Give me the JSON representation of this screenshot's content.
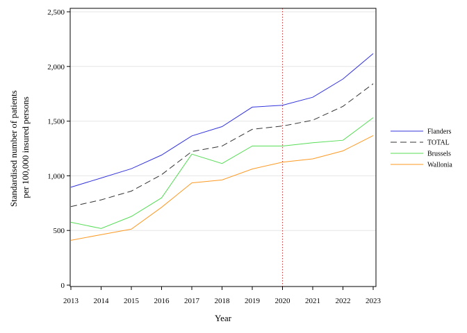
{
  "chart_data": {
    "type": "line",
    "x": [
      2013,
      2014,
      2015,
      2016,
      2017,
      2018,
      2019,
      2020,
      2021,
      2022,
      2023
    ],
    "x_tick_labels": [
      "2013",
      "2014",
      "2015",
      "2016",
      "2017",
      "2018",
      "2019",
      "2020",
      "2021",
      "2022",
      "2023"
    ],
    "series": [
      {
        "name": "Flanders",
        "color": "#3333dd",
        "dash": "solid",
        "values": [
          895,
          980,
          1065,
          1190,
          1365,
          1450,
          1628,
          1645,
          1718,
          1885,
          2118
        ]
      },
      {
        "name": "TOTAL",
        "color": "#333333",
        "dash": "dashed",
        "values": [
          718,
          780,
          860,
          1010,
          1222,
          1272,
          1425,
          1455,
          1508,
          1635,
          1842
        ]
      },
      {
        "name": "Brussels",
        "color": "#55dd55",
        "dash": "solid",
        "values": [
          575,
          518,
          628,
          798,
          1198,
          1112,
          1272,
          1272,
          1302,
          1325,
          1532
        ]
      },
      {
        "name": "Wallonia",
        "color": "#ff9922",
        "dash": "solid",
        "values": [
          410,
          462,
          512,
          712,
          935,
          962,
          1062,
          1125,
          1155,
          1228,
          1368
        ]
      }
    ],
    "ylim": [
      0,
      2500
    ],
    "y_ticks": [
      0,
      500,
      1000,
      1500,
      2000,
      2500
    ],
    "y_tick_labels": [
      "0",
      "500",
      "1,000",
      "1,500",
      "2,000",
      "2,500"
    ],
    "xlabel": "Year",
    "ylabel_lines": [
      "Standardised number of patients",
      "per 100,000 insured persons"
    ],
    "reference_line": {
      "x": 2020,
      "color": "#cc3333",
      "style": "dotted"
    },
    "grid": "horizontal",
    "legend_position": "right"
  }
}
